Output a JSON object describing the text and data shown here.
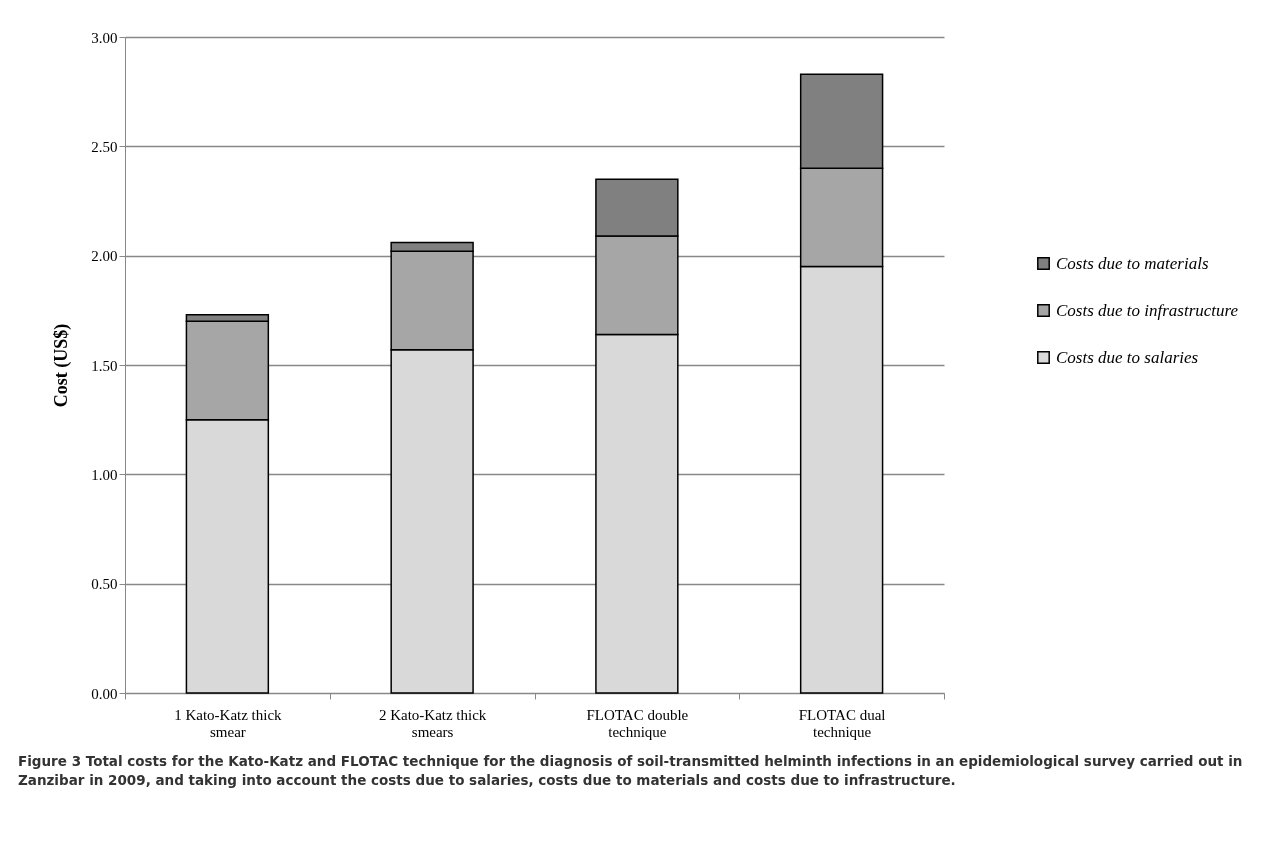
{
  "chart_data": {
    "type": "bar",
    "stacked": true,
    "ylabel": "Cost (US$)",
    "categories": [
      "1 Kato-Katz thick smear",
      "2 Kato-Katz thick smears",
      "FLOTAC double technique",
      "FLOTAC dual technique"
    ],
    "series": [
      {
        "name": "Costs due to salaries",
        "color": "#d9d9d9",
        "values": [
          1.25,
          1.57,
          1.64,
          1.95
        ]
      },
      {
        "name": "Costs due to infrastructure",
        "color": "#a6a6a6",
        "values": [
          0.45,
          0.45,
          0.45,
          0.45
        ]
      },
      {
        "name": "Costs due to materials",
        "color": "#808080",
        "values": [
          0.03,
          0.04,
          0.26,
          0.43
        ]
      }
    ],
    "ylim": [
      0,
      3
    ],
    "yticks": [
      {
        "value": 0,
        "label": "0.00"
      },
      {
        "value": 0.5,
        "label": "0.50"
      },
      {
        "value": 1,
        "label": "1.00"
      },
      {
        "value": 1.5,
        "label": "1.50"
      },
      {
        "value": 2,
        "label": "2.00"
      },
      {
        "value": 2.5,
        "label": "2.50"
      },
      {
        "value": 3,
        "label": "3.00"
      }
    ],
    "grid": "y",
    "legend": "right",
    "annotations": [
      "Figure 3 Total costs for the Kato-Katz and FLOTAC technique for the diagnosis of soil-transmitted helminth infections in an epidemiological survey carried out in Zanzibar in 2009, and taking into account the costs due to salaries, costs due to materials and costs due to infrastructure."
    ]
  }
}
